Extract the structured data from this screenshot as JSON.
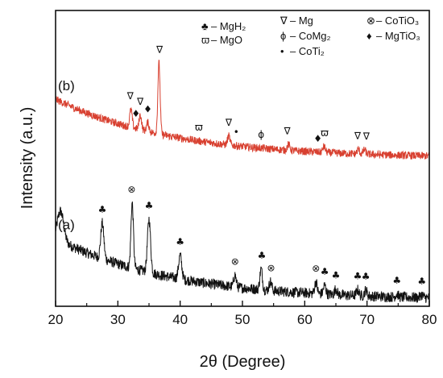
{
  "chart_data": {
    "type": "line",
    "xlabel": "2θ (Degree)",
    "ylabel": "Intensity (a.u.)",
    "xlim": [
      20,
      80
    ],
    "xticks": [
      20,
      30,
      40,
      50,
      60,
      70,
      80
    ],
    "grid": false,
    "series": [
      {
        "label": "(a)",
        "color": "#111111",
        "baseline_start": 0.23,
        "baseline_end": 0.02,
        "noise": 0.018,
        "peaks": [
          {
            "x": 20.8,
            "h": 0.1,
            "w": 0.5
          },
          {
            "x": 27.5,
            "h": 0.12,
            "w": 0.25
          },
          {
            "x": 32.3,
            "h": 0.22,
            "w": 0.2
          },
          {
            "x": 35.0,
            "h": 0.18,
            "w": 0.25
          },
          {
            "x": 40.0,
            "h": 0.08,
            "w": 0.25
          },
          {
            "x": 48.8,
            "h": 0.04,
            "w": 0.2
          },
          {
            "x": 53.0,
            "h": 0.07,
            "w": 0.2
          },
          {
            "x": 54.5,
            "h": 0.03,
            "w": 0.2
          },
          {
            "x": 61.8,
            "h": 0.04,
            "w": 0.2
          },
          {
            "x": 63.2,
            "h": 0.03,
            "w": 0.2
          },
          {
            "x": 65.0,
            "h": 0.02,
            "w": 0.2
          },
          {
            "x": 68.5,
            "h": 0.02,
            "w": 0.2
          },
          {
            "x": 69.8,
            "h": 0.02,
            "w": 0.2
          },
          {
            "x": 74.8,
            "h": 0.01,
            "w": 0.2
          },
          {
            "x": 78.8,
            "h": 0.01,
            "w": 0.2
          }
        ]
      },
      {
        "label": "(b)",
        "color": "#d84030",
        "baseline_start": 0.7,
        "baseline_end": 0.5,
        "noise": 0.013,
        "peaks": [
          {
            "x": 32.1,
            "h": 0.06,
            "w": 0.2
          },
          {
            "x": 33.6,
            "h": 0.05,
            "w": 0.2
          },
          {
            "x": 34.8,
            "h": 0.03,
            "w": 0.2
          },
          {
            "x": 36.6,
            "h": 0.24,
            "w": 0.18
          },
          {
            "x": 47.8,
            "h": 0.03,
            "w": 0.2
          },
          {
            "x": 57.4,
            "h": 0.02,
            "w": 0.2
          },
          {
            "x": 63.1,
            "h": 0.02,
            "w": 0.2
          },
          {
            "x": 68.6,
            "h": 0.015,
            "w": 0.2
          },
          {
            "x": 69.6,
            "h": 0.015,
            "w": 0.2
          }
        ]
      }
    ],
    "legend": [
      {
        "symbol": "♣",
        "text": "– MgH₂"
      },
      {
        "symbol": "ϖ",
        "text": "– MgO"
      },
      {
        "symbol": "∇",
        "text": "– Mg"
      },
      {
        "symbol": "ϕ",
        "text": "– CoMg₂"
      },
      {
        "symbol": "•",
        "text": "– CoTi₂"
      },
      {
        "symbol": "⊗",
        "text": "– CoTiO₃"
      },
      {
        "symbol": "♦",
        "text": "– MgTiO₃"
      }
    ],
    "legend_position": "top-right",
    "markers_a": [
      {
        "x": 27.5,
        "symbol": "♣"
      },
      {
        "x": 32.2,
        "symbol": "⊗"
      },
      {
        "x": 35.0,
        "symbol": "♣"
      },
      {
        "x": 40.0,
        "symbol": "♣"
      },
      {
        "x": 48.8,
        "symbol": "⊗"
      },
      {
        "x": 53.1,
        "symbol": "♣"
      },
      {
        "x": 54.6,
        "symbol": "⊗"
      },
      {
        "x": 61.8,
        "symbol": "⊗"
      },
      {
        "x": 63.2,
        "symbol": "♣"
      },
      {
        "x": 65.0,
        "symbol": "♣"
      },
      {
        "x": 68.5,
        "symbol": "♣"
      },
      {
        "x": 69.8,
        "symbol": "♣"
      },
      {
        "x": 74.8,
        "symbol": "♣"
      },
      {
        "x": 78.8,
        "symbol": "♣"
      }
    ],
    "markers_b": [
      {
        "x": 32.0,
        "symbol": "∇"
      },
      {
        "x": 33.6,
        "symbol": "∇"
      },
      {
        "x": 36.7,
        "symbol": "∇"
      },
      {
        "x": 32.9,
        "symbol": "♦"
      },
      {
        "x": 34.8,
        "symbol": "♦"
      },
      {
        "x": 43.0,
        "symbol": "ϖ"
      },
      {
        "x": 47.8,
        "symbol": "∇"
      },
      {
        "x": 49.0,
        "symbol": "•"
      },
      {
        "x": 53.0,
        "symbol": "ϕ"
      },
      {
        "x": 57.2,
        "symbol": "∇"
      },
      {
        "x": 62.1,
        "symbol": "♦"
      },
      {
        "x": 63.2,
        "symbol": "ϖ"
      },
      {
        "x": 68.5,
        "symbol": "∇"
      },
      {
        "x": 69.9,
        "symbol": "∇"
      }
    ]
  }
}
